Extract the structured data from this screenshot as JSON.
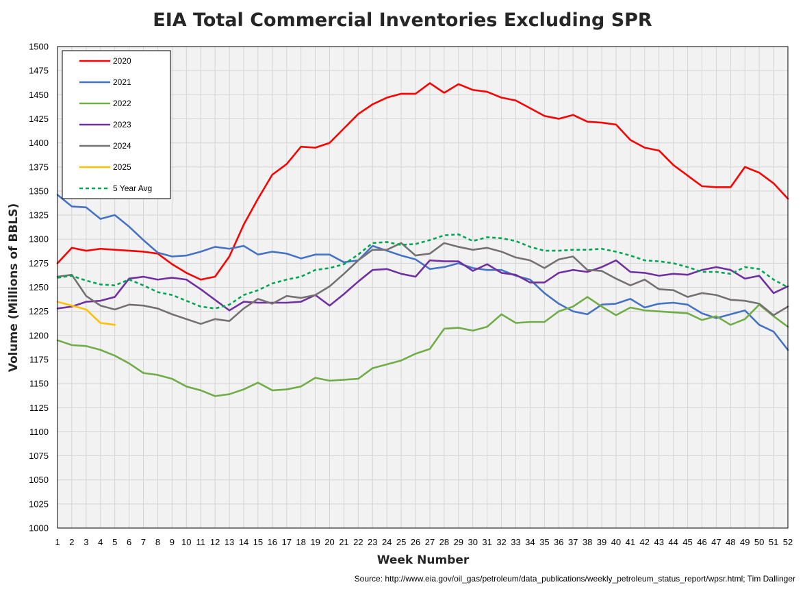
{
  "chart_data": {
    "type": "line",
    "title": "EIA Total Commercial Inventories Excluding SPR",
    "xlabel": "Week Number",
    "ylabel": "Volume (Millions of BBLS)",
    "source": "Source: http://www.eia.gov/oil_gas/petroleum/data_publications/weekly_petroleum_status_report/wpsr.html; Tim Dallinger",
    "xlim": [
      1,
      52
    ],
    "ylim": [
      1000,
      1500
    ],
    "x_ticks": [
      1,
      2,
      3,
      4,
      5,
      6,
      7,
      8,
      9,
      10,
      11,
      12,
      13,
      14,
      15,
      16,
      17,
      18,
      19,
      20,
      21,
      22,
      23,
      24,
      25,
      26,
      27,
      28,
      29,
      30,
      31,
      32,
      33,
      34,
      35,
      36,
      37,
      38,
      39,
      40,
      41,
      42,
      43,
      44,
      45,
      46,
      47,
      48,
      49,
      50,
      51,
      52
    ],
    "y_ticks": [
      1000,
      1025,
      1050,
      1075,
      1100,
      1125,
      1150,
      1175,
      1200,
      1225,
      1250,
      1275,
      1300,
      1325,
      1350,
      1375,
      1400,
      1425,
      1450,
      1475,
      1500
    ],
    "grid": true,
    "legend_position": "top-left",
    "series": [
      {
        "name": "2020",
        "color": "#ff0000",
        "dash": false,
        "values": [
          1275,
          1291,
          1288,
          1290,
          1289,
          1288,
          1287,
          1285,
          1274,
          1265,
          1258,
          1261,
          1282,
          1315,
          1342,
          1367,
          1378,
          1396,
          1395,
          1400,
          1415,
          1430,
          1440,
          1447,
          1451,
          1451,
          1462,
          1452,
          1461,
          1455,
          1453,
          1447,
          1444,
          1436,
          1428,
          1425,
          1429,
          1422,
          1421,
          1419,
          1403,
          1395,
          1392,
          1377,
          1366,
          1355,
          1354,
          1354,
          1375,
          1369,
          1358,
          1342
        ]
      },
      {
        "name": "2021",
        "color": "#4472c4",
        "dash": false,
        "values": [
          1346,
          1334,
          1333,
          1321,
          1325,
          1313,
          1299,
          1286,
          1282,
          1283,
          1287,
          1292,
          1290,
          1293,
          1284,
          1287,
          1285,
          1280,
          1284,
          1284,
          1276,
          1278,
          1293,
          1288,
          1283,
          1279,
          1269,
          1271,
          1275,
          1270,
          1268,
          1268,
          1262,
          1258,
          1244,
          1233,
          1225,
          1222,
          1232,
          1233,
          1238,
          1229,
          1233,
          1234,
          1232,
          1223,
          1218,
          1222,
          1226,
          1211,
          1204,
          1185
        ]
      },
      {
        "name": "2022",
        "color": "#70ad47",
        "dash": false,
        "values": [
          1195,
          1190,
          1189,
          1185,
          1179,
          1171,
          1161,
          1159,
          1155,
          1147,
          1143,
          1137,
          1139,
          1144,
          1151,
          1143,
          1144,
          1147,
          1156,
          1153,
          1154,
          1155,
          1166,
          1170,
          1174,
          1181,
          1186,
          1207,
          1208,
          1205,
          1209,
          1222,
          1213,
          1214,
          1214,
          1225,
          1230,
          1240,
          1230,
          1221,
          1229,
          1226,
          1225,
          1224,
          1223,
          1216,
          1220,
          1211,
          1217,
          1232,
          1220,
          1209
        ]
      },
      {
        "name": "2023",
        "color": "#7030a0",
        "dash": false,
        "values": [
          1228,
          1230,
          1235,
          1236,
          1240,
          1259,
          1261,
          1258,
          1260,
          1258,
          1248,
          1237,
          1226,
          1235,
          1234,
          1234,
          1234,
          1235,
          1242,
          1231,
          1243,
          1256,
          1268,
          1269,
          1264,
          1261,
          1278,
          1277,
          1277,
          1267,
          1274,
          1265,
          1263,
          1255,
          1255,
          1265,
          1268,
          1266,
          1271,
          1278,
          1266,
          1265,
          1262,
          1264,
          1263,
          1268,
          1271,
          1268,
          1259,
          1262,
          1244,
          1251
        ]
      },
      {
        "name": "2024",
        "color": "#767171",
        "dash": false,
        "values": [
          1261,
          1263,
          1241,
          1231,
          1227,
          1232,
          1231,
          1228,
          1222,
          1217,
          1212,
          1217,
          1215,
          1228,
          1238,
          1233,
          1241,
          1239,
          1242,
          1251,
          1264,
          1278,
          1289,
          1289,
          1296,
          1283,
          1285,
          1296,
          1292,
          1289,
          1291,
          1287,
          1281,
          1278,
          1270,
          1279,
          1282,
          1268,
          1267,
          1259,
          1252,
          1258,
          1248,
          1247,
          1240,
          1244,
          1242,
          1237,
          1236,
          1233,
          1221,
          1230
        ]
      },
      {
        "name": "2025",
        "color": "#ffc000",
        "dash": false,
        "values": [
          1235,
          1231,
          1227,
          1213,
          1211
        ]
      },
      {
        "name": "5 Year Avg",
        "color": "#00a651",
        "dash": true,
        "values": [
          1260,
          1262,
          1257,
          1253,
          1252,
          1258,
          1252,
          1245,
          1242,
          1236,
          1230,
          1228,
          1232,
          1242,
          1247,
          1254,
          1258,
          1261,
          1268,
          1270,
          1274,
          1284,
          1296,
          1297,
          1294,
          1295,
          1299,
          1304,
          1305,
          1298,
          1302,
          1301,
          1298,
          1292,
          1288,
          1288,
          1289,
          1289,
          1290,
          1287,
          1283,
          1278,
          1277,
          1275,
          1271,
          1266,
          1266,
          1264,
          1271,
          1269,
          1258,
          1250
        ]
      }
    ]
  }
}
